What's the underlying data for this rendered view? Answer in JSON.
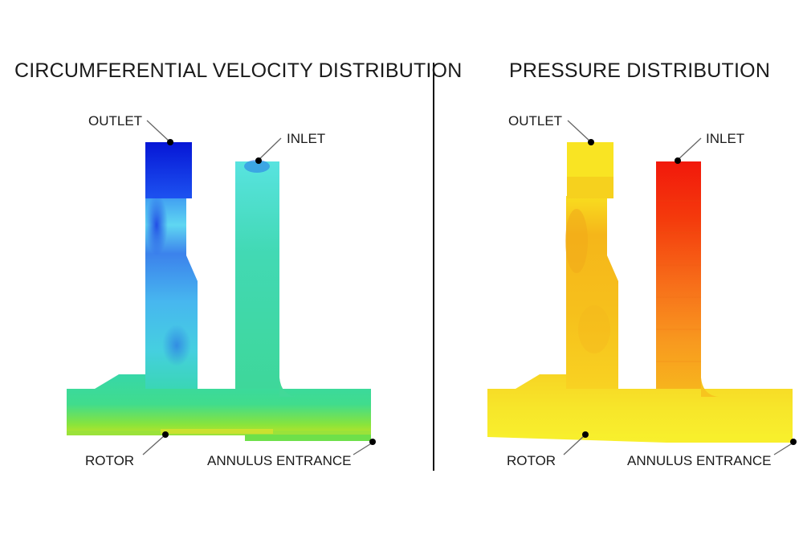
{
  "left_panel": {
    "title": "CIRCUMFERENTIAL VELOCITY DISTRIBUTION",
    "labels": {
      "outlet": "OUTLET",
      "inlet": "INLET",
      "rotor": "ROTOR",
      "annulus": "ANNULUS ENTRANCE"
    }
  },
  "right_panel": {
    "title": "PRESSURE DISTRIBUTION",
    "labels": {
      "outlet": "OUTLET",
      "inlet": "INLET",
      "rotor": "ROTOR",
      "annulus": "ANNULUS ENTRANCE"
    }
  },
  "colors": {
    "velocity_low": "#0a1fd8",
    "velocity_mid": "#39d9c0",
    "velocity_high": "#7ae23a",
    "pressure_low": "#f7ef2a",
    "pressure_mid": "#f6c21c",
    "pressure_high": "#f11d08"
  }
}
